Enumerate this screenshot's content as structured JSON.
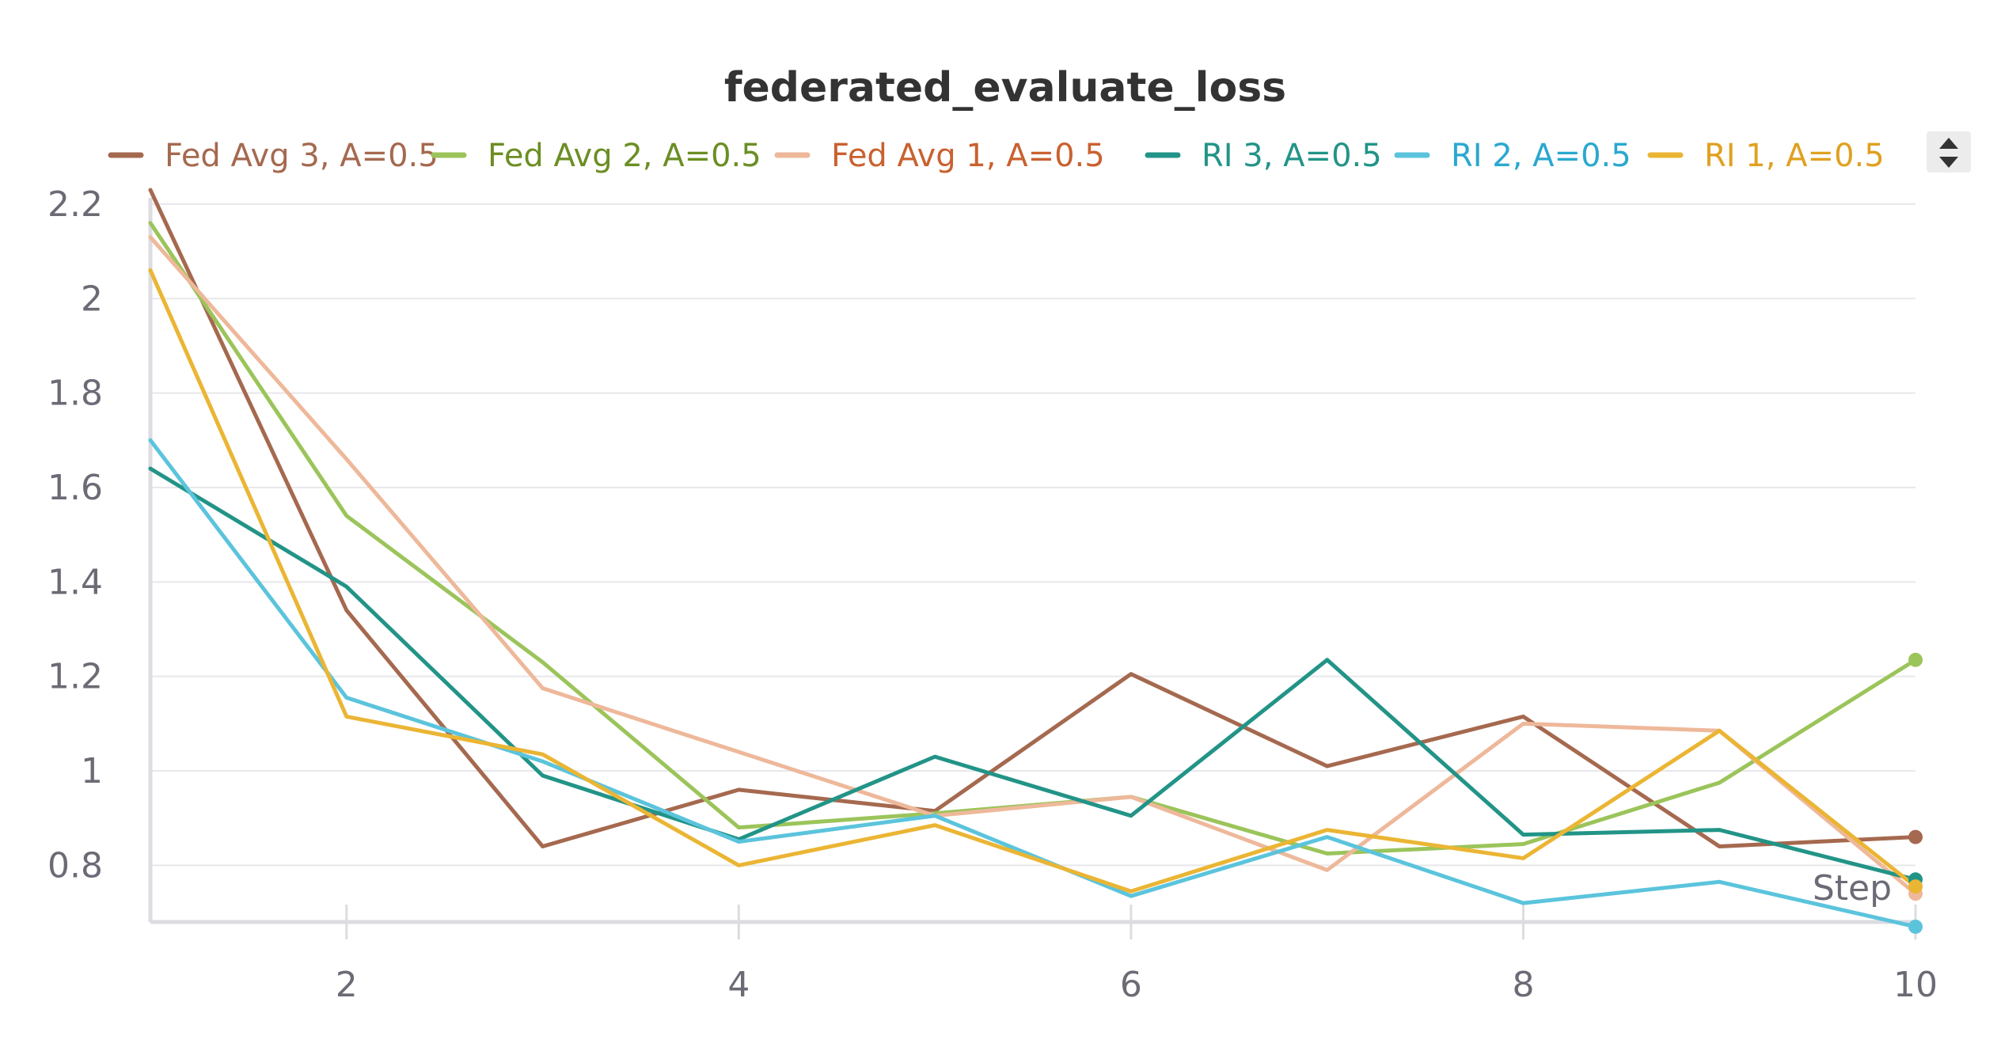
{
  "chart_data": {
    "type": "line",
    "title": "federated_evaluate_loss",
    "xlabel": "Step",
    "ylabel": "",
    "x": [
      1,
      2,
      3,
      4,
      5,
      6,
      7,
      8,
      9,
      10
    ],
    "xlim": [
      1,
      10
    ],
    "ylim": [
      0.68,
      2.23
    ],
    "x_ticks": [
      "2",
      "4",
      "6",
      "8",
      "10"
    ],
    "y_ticks": [
      "2.2",
      "2",
      "1.8",
      "1.6",
      "1.4",
      "1.2",
      "1",
      "0.8"
    ],
    "grid": true,
    "legend_position": "top",
    "series": [
      {
        "name": "Fed Avg 3, A=0.5",
        "color": "#a5694f",
        "label_color": "#a5694f",
        "values": [
          2.23,
          1.34,
          0.84,
          0.96,
          0.915,
          1.205,
          1.01,
          1.115,
          0.84,
          0.86
        ]
      },
      {
        "name": "Fed Avg 2, A=0.5",
        "color": "#9bc45a",
        "label_color": "#6b8e23",
        "values": [
          2.16,
          1.54,
          1.23,
          0.88,
          0.91,
          0.945,
          0.825,
          0.845,
          0.975,
          1.235
        ]
      },
      {
        "name": "Fed Avg 1, A=0.5",
        "color": "#eeb89a",
        "label_color": "#c9612f",
        "values": [
          2.13,
          1.66,
          1.175,
          1.04,
          0.905,
          0.945,
          0.79,
          1.1,
          1.085,
          0.74
        ]
      },
      {
        "name": "RI 3, A=0.5",
        "color": "#229487",
        "label_color": "#229487",
        "values": [
          1.64,
          1.39,
          0.99,
          0.855,
          1.03,
          0.905,
          1.235,
          0.865,
          0.875,
          0.77
        ]
      },
      {
        "name": "RI 2, A=0.5",
        "color": "#5bc4dc",
        "label_color": "#2aa8cf",
        "values": [
          1.7,
          1.155,
          1.02,
          0.85,
          0.905,
          0.735,
          0.86,
          0.72,
          0.765,
          0.67
        ]
      },
      {
        "name": "RI 1, A=0.5",
        "color": "#ebb534",
        "label_color": "#e0a020",
        "values": [
          2.06,
          1.115,
          1.035,
          0.8,
          0.885,
          0.745,
          0.875,
          0.815,
          1.085,
          0.755
        ]
      }
    ]
  }
}
